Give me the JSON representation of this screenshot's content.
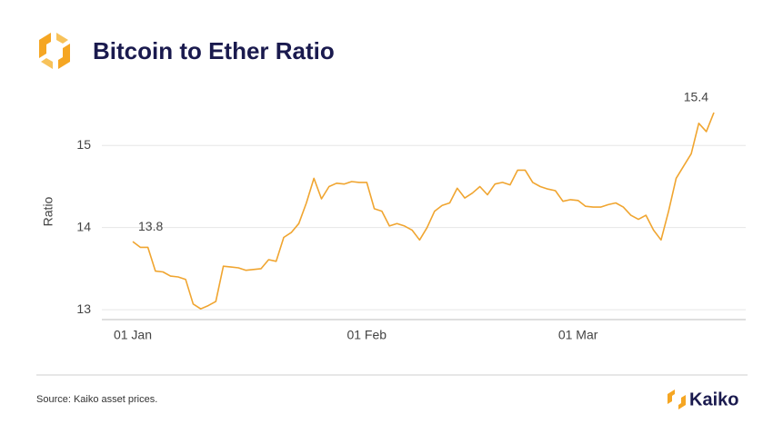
{
  "chart_data": {
    "type": "line",
    "title": "Bitcoin to Ether Ratio",
    "y_label": "Ratio",
    "categories": [
      "01 Jan",
      null,
      null,
      null,
      null,
      null,
      null,
      null,
      null,
      null,
      null,
      null,
      null,
      null,
      null,
      null,
      null,
      null,
      null,
      null,
      null,
      null,
      null,
      null,
      null,
      null,
      null,
      null,
      null,
      null,
      null,
      "01 Feb",
      null,
      null,
      null,
      null,
      null,
      null,
      null,
      null,
      null,
      null,
      null,
      null,
      null,
      null,
      null,
      null,
      null,
      null,
      null,
      null,
      null,
      null,
      null,
      null,
      null,
      null,
      null,
      "01 Mar",
      null,
      null,
      null,
      null,
      null,
      null,
      null,
      null,
      null,
      null,
      null,
      null,
      null,
      null,
      null,
      null,
      null,
      null
    ],
    "series": [
      {
        "name": "Ratio",
        "color": "#f0a530",
        "values": [
          13.83,
          13.76,
          13.76,
          13.47,
          13.46,
          13.41,
          13.4,
          13.37,
          13.07,
          13.01,
          13.05,
          13.1,
          13.53,
          13.52,
          13.51,
          13.48,
          13.49,
          13.5,
          13.61,
          13.59,
          13.88,
          13.94,
          14.05,
          14.3,
          14.6,
          14.35,
          14.5,
          14.54,
          14.53,
          14.56,
          14.55,
          14.55,
          14.23,
          14.2,
          14.02,
          14.05,
          14.02,
          13.97,
          13.85,
          14.0,
          14.2,
          14.27,
          14.3,
          14.48,
          14.36,
          14.42,
          14.5,
          14.4,
          14.53,
          14.55,
          14.52,
          14.7,
          14.7,
          14.55,
          14.5,
          14.47,
          14.45,
          14.32,
          14.34,
          14.33,
          14.26,
          14.25,
          14.25,
          14.28,
          14.3,
          14.25,
          14.15,
          14.1,
          14.15,
          13.97,
          13.85,
          14.2,
          14.6,
          14.75,
          14.9,
          15.27,
          15.17,
          15.4
        ],
        "value_labels": [
          "13.8",
          null,
          null,
          null,
          null,
          null,
          null,
          null,
          null,
          null,
          null,
          null,
          null,
          null,
          null,
          null,
          null,
          null,
          null,
          null,
          null,
          null,
          null,
          null,
          null,
          null,
          null,
          null,
          null,
          null,
          null,
          null,
          null,
          null,
          null,
          null,
          null,
          null,
          null,
          null,
          null,
          null,
          null,
          null,
          null,
          null,
          null,
          null,
          null,
          null,
          null,
          null,
          null,
          null,
          null,
          null,
          null,
          null,
          null,
          null,
          null,
          null,
          null,
          null,
          null,
          null,
          null,
          null,
          null,
          null,
          null,
          null,
          null,
          null,
          null,
          null,
          null,
          "15.4"
        ]
      }
    ],
    "ylim": [
      12.88,
      15.5
    ],
    "yticks": [
      13,
      14,
      15
    ],
    "grid": true
  },
  "footer": {
    "source": "Source: Kaiko asset prices.",
    "brand": "Kaiko"
  }
}
